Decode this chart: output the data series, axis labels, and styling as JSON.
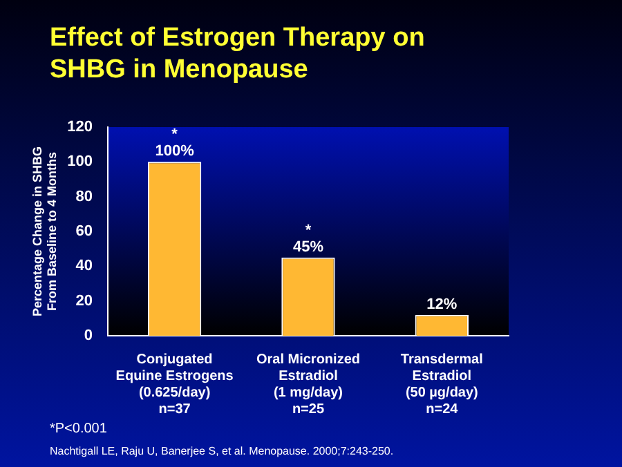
{
  "chart_data": {
    "type": "bar",
    "title": "Effect of Estrogen Therapy on SHBG in Menopause",
    "ylabel": "Percentage Change in SHBG\nFrom Baseline to 4 Months",
    "categories": [
      "Conjugated\nEquine Estrogens\n(0.625/day)\nn=37",
      "Oral Micronized\nEstradiol\n(1 mg/day)\nn=25",
      "Transdermal\nEstradiol\n(50 µg/day)\nn=24"
    ],
    "values": [
      100,
      45,
      12
    ],
    "color": "#ffb833",
    "value_labels": [
      "100%",
      "45%",
      "12%"
    ],
    "ylim": [
      0,
      120
    ],
    "yticks": [
      0,
      20,
      40,
      60,
      80,
      100,
      120
    ],
    "grid": false,
    "annotations": [
      {
        "text": "*",
        "x": "Conjugated\nEquine Estrogens\n(0.625/day)\nn=37",
        "y": 100
      },
      {
        "text": "*",
        "x": "Oral Micronized\nEstradiol\n(1 mg/day)\nn=25",
        "y": 45
      },
      "*P<0.001",
      "Nachtigall LE, Raju U, Banerjee S, et al. Menopause. 2000;7:243-250."
    ]
  }
}
